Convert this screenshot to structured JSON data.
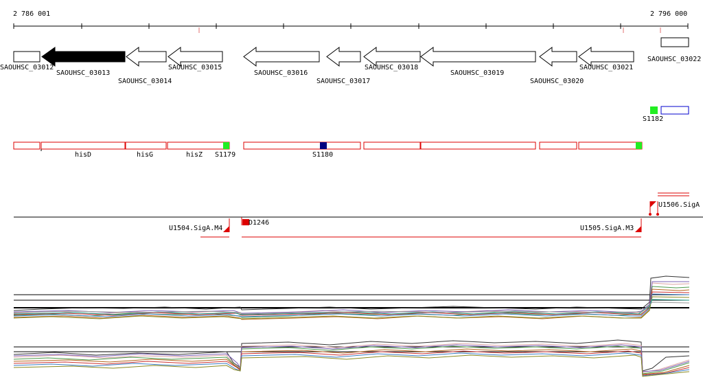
{
  "ruler": {
    "start_label": "2 786 001",
    "end_label": "2 796 000"
  },
  "genes": [
    {
      "label": "SAOUHSC_03012",
      "dir": "right",
      "filled": false
    },
    {
      "label": "SAOUHSC_03013",
      "dir": "left",
      "filled": true
    },
    {
      "label": "SAOUHSC_03014",
      "dir": "left",
      "filled": false
    },
    {
      "label": "SAOUHSC_03015",
      "dir": "left",
      "filled": false
    },
    {
      "label": "SAOUHSC_03016",
      "dir": "left",
      "filled": false
    },
    {
      "label": "SAOUHSC_03017",
      "dir": "left",
      "filled": false
    },
    {
      "label": "SAOUHSC_03018",
      "dir": "left",
      "filled": false
    },
    {
      "label": "SAOUHSC_03019",
      "dir": "left",
      "filled": false
    },
    {
      "label": "SAOUHSC_03020",
      "dir": "left",
      "filled": false
    },
    {
      "label": "SAOUHSC_03021",
      "dir": "left",
      "filled": false
    },
    {
      "label": "SAOUHSC_03022",
      "dir": "right",
      "filled": false
    }
  ],
  "operon_labels": [
    "hisD",
    "hisG",
    "hisZ"
  ],
  "sites": [
    "S1179",
    "S1180",
    "S1182"
  ],
  "upstream_labels": [
    "U1504.SigA.M4",
    "U1505.SigA.M3"
  ],
  "downstream_label": "D1246",
  "overlap_label": "U1506.SigA",
  "colors": {
    "gene_outline": "#000000",
    "operon_red": "#dd0000",
    "site_green": "#22ee22",
    "site_navy": "#000080",
    "site_blue": "#0000cc",
    "ruler_pink": "#f0b8b8"
  }
}
